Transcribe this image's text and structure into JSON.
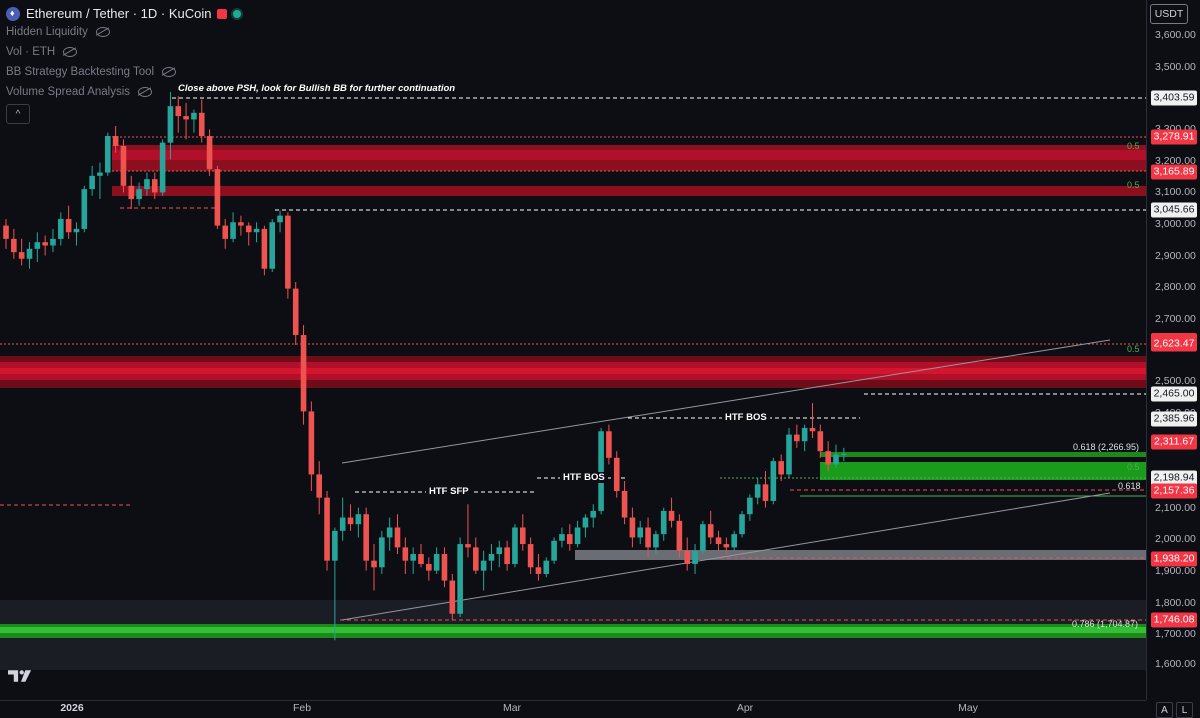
{
  "header": {
    "title": "Ethereum / Tether · 1D · KuCoin",
    "indicators": [
      {
        "label": "Hidden Liquidity"
      },
      {
        "label": "Vol · ETH"
      },
      {
        "label": "BB Strategy Backtesting Tool"
      },
      {
        "label": "Volume Spread Analysis"
      }
    ],
    "collapse_symbol": "^"
  },
  "currency_button": "USDT",
  "price_axis": {
    "ticks": [
      "3,600.00",
      "3,500.00",
      "3,300.00",
      "3,200.00",
      "3,100.00",
      "3,000.00",
      "2,900.00",
      "2,800.00",
      "2,700.00",
      "2,500.00",
      "2,400.00",
      "2,100.00",
      "2,000.00",
      "1,900.00",
      "1,800.00",
      "1,700.00",
      "1,600.00"
    ],
    "tags": [
      {
        "text": "3,403.59",
        "style": "white"
      },
      {
        "text": "3,278.91",
        "style": "red"
      },
      {
        "text": "3,165.89",
        "style": "red"
      },
      {
        "text": "3,045.66",
        "style": "white"
      },
      {
        "text": "2,623.47",
        "style": "red"
      },
      {
        "text": "2,465.00",
        "style": "white"
      },
      {
        "text": "2,385.96",
        "style": "white"
      },
      {
        "text": "2,311.67",
        "style": "red"
      },
      {
        "text": "2,198.94",
        "style": "white"
      },
      {
        "text": "2,157.36",
        "style": "red"
      },
      {
        "text": "1,938.20",
        "style": "red"
      },
      {
        "text": "1,746.08",
        "style": "red"
      }
    ]
  },
  "time_axis": {
    "labels": [
      {
        "text": "2026",
        "bold": true
      },
      {
        "text": "Feb",
        "bold": false
      },
      {
        "text": "Mar",
        "bold": false
      },
      {
        "text": "Apr",
        "bold": false
      },
      {
        "text": "May",
        "bold": false
      }
    ],
    "auto_button": "A",
    "log_button": "L"
  },
  "annotations": {
    "psh_note": "Close above PSH, look for Bullish BB for further continuation",
    "htf_sfp": "HTF SFP",
    "htf_bos_1": "HTF BOS",
    "htf_bos_2": "HTF BOS",
    "fib_0618_val": "0.618 (2,266.95)",
    "fib_0618": "0.618",
    "fib_0786": "0.786 (1,704.87)",
    "fib_half": "0.5"
  },
  "colors": {
    "background": "#0d0e13",
    "up": "#26a69a",
    "down": "#ef5350",
    "red_zone": "#b2102a",
    "green_zone": "#1b9b1b"
  },
  "chart_data": {
    "type": "candlestick",
    "symbol": "ETH/USDT",
    "interval": "1D",
    "exchange": "KuCoin",
    "ylim": [
      1570,
      3680
    ],
    "candles": [
      [
        3000,
        3020,
        2930,
        2960
      ],
      [
        2960,
        2990,
        2900,
        2920
      ],
      [
        2920,
        2960,
        2880,
        2900
      ],
      [
        2900,
        2950,
        2870,
        2930
      ],
      [
        2930,
        2980,
        2890,
        2950
      ],
      [
        2950,
        2970,
        2910,
        2940
      ],
      [
        2940,
        2990,
        2920,
        2960
      ],
      [
        2960,
        3040,
        2940,
        3020
      ],
      [
        3020,
        3060,
        2960,
        2980
      ],
      [
        2980,
        3010,
        2940,
        2990
      ],
      [
        2990,
        3120,
        2980,
        3110
      ],
      [
        3110,
        3180,
        3090,
        3150
      ],
      [
        3150,
        3190,
        3080,
        3160
      ],
      [
        3160,
        3280,
        3150,
        3270
      ],
      [
        3270,
        3300,
        3220,
        3240
      ],
      [
        3240,
        3260,
        3100,
        3120
      ],
      [
        3120,
        3150,
        3050,
        3080
      ],
      [
        3080,
        3130,
        3060,
        3110
      ],
      [
        3110,
        3160,
        3090,
        3140
      ],
      [
        3140,
        3160,
        3080,
        3100
      ],
      [
        3100,
        3260,
        3090,
        3250
      ],
      [
        3250,
        3403,
        3200,
        3360
      ],
      [
        3360,
        3390,
        3280,
        3330
      ],
      [
        3330,
        3370,
        3260,
        3320
      ],
      [
        3320,
        3350,
        3280,
        3340
      ],
      [
        3340,
        3380,
        3250,
        3270
      ],
      [
        3270,
        3290,
        3150,
        3170
      ],
      [
        3170,
        3180,
        2990,
        3000
      ],
      [
        3000,
        3020,
        2930,
        2960
      ],
      [
        2960,
        3040,
        2950,
        3010
      ],
      [
        3010,
        3030,
        2970,
        3000
      ],
      [
        3000,
        3010,
        2940,
        2980
      ],
      [
        2980,
        3010,
        2950,
        2990
      ],
      [
        2990,
        3000,
        2850,
        2870
      ],
      [
        2870,
        3020,
        2860,
        3010
      ],
      [
        3010,
        3045,
        2980,
        3030
      ],
      [
        3030,
        3040,
        2780,
        2810
      ],
      [
        2810,
        2830,
        2640,
        2670
      ],
      [
        2670,
        2700,
        2400,
        2440
      ],
      [
        2440,
        2470,
        2200,
        2250
      ],
      [
        2250,
        2290,
        2130,
        2180
      ],
      [
        2180,
        2200,
        1960,
        1990
      ],
      [
        1990,
        2090,
        1750,
        2080
      ],
      [
        2080,
        2180,
        2050,
        2120
      ],
      [
        2120,
        2160,
        2080,
        2100
      ],
      [
        2100,
        2150,
        2060,
        2130
      ],
      [
        2130,
        2150,
        1960,
        1990
      ],
      [
        1990,
        2040,
        1900,
        1970
      ],
      [
        1970,
        2080,
        1950,
        2060
      ],
      [
        2060,
        2120,
        2020,
        2090
      ],
      [
        2090,
        2130,
        2010,
        2030
      ],
      [
        2030,
        2060,
        1950,
        1990
      ],
      [
        1990,
        2030,
        1950,
        2010
      ],
      [
        2010,
        2040,
        1970,
        1980
      ],
      [
        1980,
        2000,
        1930,
        1960
      ],
      [
        1960,
        2030,
        1950,
        2010
      ],
      [
        2010,
        2030,
        1910,
        1930
      ],
      [
        1930,
        1950,
        1810,
        1830
      ],
      [
        1830,
        2060,
        1820,
        2040
      ],
      [
        2040,
        2160,
        2000,
        2030
      ],
      [
        2030,
        2060,
        1950,
        1960
      ],
      [
        1960,
        2020,
        1900,
        1990
      ],
      [
        1990,
        2040,
        1960,
        2010
      ],
      [
        2010,
        2050,
        1970,
        2030
      ],
      [
        2030,
        2050,
        1960,
        1980
      ],
      [
        1980,
        2100,
        1970,
        2090
      ],
      [
        2090,
        2130,
        2020,
        2040
      ],
      [
        2040,
        2060,
        1950,
        1970
      ],
      [
        1970,
        2010,
        1930,
        1950
      ],
      [
        1950,
        2000,
        1940,
        1990
      ],
      [
        1990,
        2060,
        1980,
        2050
      ],
      [
        2050,
        2090,
        2030,
        2070
      ],
      [
        2070,
        2100,
        2020,
        2040
      ],
      [
        2040,
        2110,
        2030,
        2090
      ],
      [
        2090,
        2130,
        2060,
        2120
      ],
      [
        2120,
        2160,
        2090,
        2140
      ],
      [
        2140,
        2390,
        2130,
        2380
      ],
      [
        2380,
        2400,
        2280,
        2300
      ],
      [
        2300,
        2320,
        2180,
        2200
      ],
      [
        2200,
        2230,
        2100,
        2120
      ],
      [
        2120,
        2150,
        2030,
        2060
      ],
      [
        2060,
        2110,
        2040,
        2090
      ],
      [
        2090,
        2120,
        2000,
        2030
      ],
      [
        2030,
        2080,
        2010,
        2070
      ],
      [
        2070,
        2150,
        2050,
        2140
      ],
      [
        2140,
        2180,
        2090,
        2110
      ],
      [
        2110,
        2130,
        2000,
        2020
      ],
      [
        2020,
        2060,
        1960,
        1980
      ],
      [
        1980,
        2040,
        1950,
        2020
      ],
      [
        2020,
        2110,
        2010,
        2100
      ],
      [
        2100,
        2140,
        2040,
        2060
      ],
      [
        2060,
        2080,
        2020,
        2040
      ],
      [
        2040,
        2060,
        2010,
        2030
      ],
      [
        2030,
        2080,
        2020,
        2070
      ],
      [
        2070,
        2140,
        2060,
        2130
      ],
      [
        2130,
        2190,
        2110,
        2180
      ],
      [
        2180,
        2240,
        2160,
        2220
      ],
      [
        2220,
        2260,
        2150,
        2170
      ],
      [
        2170,
        2300,
        2160,
        2290
      ],
      [
        2290,
        2310,
        2230,
        2250
      ],
      [
        2250,
        2390,
        2240,
        2370
      ],
      [
        2370,
        2400,
        2330,
        2350
      ],
      [
        2350,
        2400,
        2320,
        2390
      ],
      [
        2390,
        2465,
        2360,
        2380
      ],
      [
        2380,
        2400,
        2300,
        2320
      ],
      [
        2320,
        2350,
        2260,
        2280
      ],
      [
        2280,
        2340,
        2270,
        2310
      ],
      [
        2310,
        2330,
        2290,
        2311.67
      ]
    ],
    "key_levels": [
      3403.59,
      3278.91,
      3165.89,
      3045.66,
      2623.47,
      2465.0,
      2385.96,
      2311.67,
      2198.94,
      2157.36,
      1938.2,
      1746.08
    ]
  }
}
